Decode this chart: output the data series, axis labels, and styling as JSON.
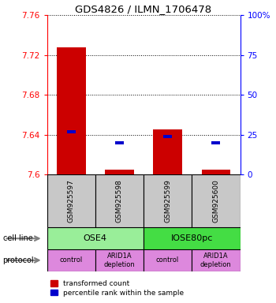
{
  "title": "GDS4826 / ILMN_1706478",
  "samples": [
    "GSM925597",
    "GSM925598",
    "GSM925599",
    "GSM925600"
  ],
  "transformed_counts": [
    7.728,
    7.605,
    7.645,
    7.605
  ],
  "red_bar_bottoms": [
    7.6,
    7.6,
    7.6,
    7.6
  ],
  "percentile_values": [
    7.643,
    7.632,
    7.638,
    7.632
  ],
  "ylim": [
    7.6,
    7.76
  ],
  "yticks_left": [
    7.6,
    7.64,
    7.68,
    7.72,
    7.76
  ],
  "yticks_right": [
    0,
    25,
    50,
    75,
    100
  ],
  "ytick_labels_right": [
    "0",
    "25",
    "50",
    "75",
    "100%"
  ],
  "cell_line_groups": [
    {
      "label": "OSE4",
      "start": 0,
      "end": 2,
      "color": "#99EE99"
    },
    {
      "label": "IOSE80pc",
      "start": 2,
      "end": 4,
      "color": "#44DD44"
    }
  ],
  "protocols": [
    "control",
    "ARID1A\ndepletion",
    "control",
    "ARID1A\ndepletion"
  ],
  "protocol_color": "#DD88DD",
  "sample_box_color": "#C8C8C8",
  "bar_color_red": "#CC0000",
  "bar_color_blue": "#0000CC",
  "bar_width": 0.6,
  "legend_red": "transformed count",
  "legend_blue": "percentile rank within the sample",
  "n_samples": 4
}
